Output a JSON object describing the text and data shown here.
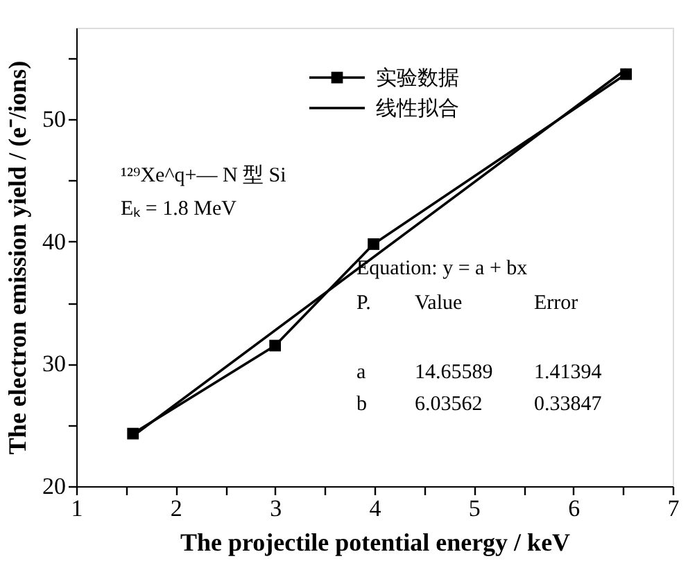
{
  "chart_data": {
    "type": "line",
    "xlabel": "The projectile potential energy / keV",
    "ylabel": "The electron emission yield / (e⁻/ions)",
    "xlim": [
      1,
      7
    ],
    "xticks": [
      1,
      {
        "value": 1.5,
        "label": null
      },
      2,
      {
        "value": 2.5,
        "label": null
      },
      3,
      {
        "value": 3.5,
        "label": null
      },
      4,
      {
        "value": 4.5,
        "label": null
      },
      5,
      {
        "value": 5.5,
        "label": null
      },
      6,
      {
        "value": 6.5,
        "label": null
      },
      7
    ],
    "ylim": [
      20,
      57.5
    ],
    "yticks": [
      20,
      {
        "value": 25,
        "label": null
      },
      30,
      {
        "value": 35,
        "label": null
      },
      40,
      {
        "value": 45,
        "label": null
      },
      50,
      {
        "value": 55,
        "label": null
      }
    ],
    "series": [
      {
        "name": "实验数据",
        "color": "#000000",
        "marker": "square",
        "x": [
          1.57,
          3.0,
          3.99,
          6.53
        ],
        "values": [
          24.3,
          31.5,
          39.8,
          53.7
        ]
      },
      {
        "name": "线性拟合",
        "color": "#000000",
        "marker": "none",
        "x": [
          1.57,
          6.53
        ],
        "values": [
          24.1,
          54.1
        ]
      }
    ],
    "legend": "top right",
    "grid": false,
    "line_style": "solid",
    "annotations": [
      "¹²⁹Xe^q+— N 型 Si",
      "Eₖ = 1.8 MeV",
      "Equation: y = a + bx",
      "P.      Value          Error",
      "a      14.65589      1.41394",
      "b        6.03562      0.33847"
    ]
  }
}
